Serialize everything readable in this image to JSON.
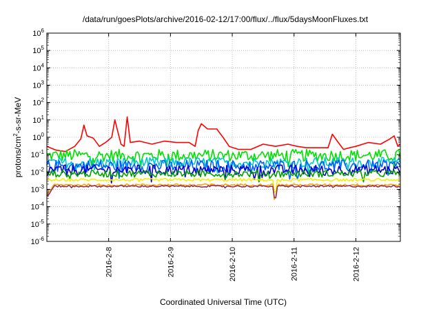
{
  "chart_data": {
    "type": "line",
    "title": "/data/run/goesPlots/archive/2016-02-12/17:00/flux/../flux/5daysMoonFluxes.txt",
    "xlabel": "Coordinated Universal Time (UTC)",
    "ylabel_parts": [
      "protons/cm",
      "2",
      "-s-sr-MeV"
    ],
    "y_scale": "log",
    "ylim_exp": [
      -6,
      6
    ],
    "y_tick_exponents": [
      -6,
      -5,
      -4,
      -3,
      -2,
      -1,
      0,
      1,
      2,
      3,
      4,
      5,
      6
    ],
    "x_tick_labels": [
      "2016-2-8",
      "2016-2-9",
      "2016-2-10",
      "2016-2-11",
      "2016-2-12"
    ],
    "xlim_days": [
      7.0,
      12.72
    ],
    "x_tick_days": [
      8,
      9,
      10,
      11,
      12
    ],
    "grid": true,
    "series": [
      {
        "color": "#ff0000",
        "points": [
          [
            7.0,
            0.3
          ],
          [
            7.15,
            0.18
          ],
          [
            7.3,
            0.15
          ],
          [
            7.45,
            0.3
          ],
          [
            7.55,
            0.8
          ],
          [
            7.6,
            5.0
          ],
          [
            7.65,
            1.2
          ],
          [
            7.75,
            0.9
          ],
          [
            7.85,
            0.3
          ],
          [
            7.95,
            0.5
          ],
          [
            8.05,
            1.0
          ],
          [
            8.1,
            10.0
          ],
          [
            8.15,
            2.0
          ],
          [
            8.2,
            0.4
          ],
          [
            8.25,
            0.3
          ],
          [
            8.3,
            15.0
          ],
          [
            8.35,
            0.5
          ],
          [
            8.5,
            0.6
          ],
          [
            8.7,
            0.4
          ],
          [
            8.9,
            0.6
          ],
          [
            9.1,
            0.5
          ],
          [
            9.3,
            0.5
          ],
          [
            9.4,
            0.3
          ],
          [
            9.45,
            2.5
          ],
          [
            9.5,
            6.0
          ],
          [
            9.6,
            3.0
          ],
          [
            9.75,
            3.0
          ],
          [
            9.85,
            1.0
          ],
          [
            9.95,
            0.3
          ],
          [
            10.1,
            0.2
          ],
          [
            10.3,
            0.2
          ],
          [
            10.5,
            0.4
          ],
          [
            10.7,
            0.3
          ],
          [
            10.9,
            0.4
          ],
          [
            11.05,
            0.3
          ],
          [
            11.2,
            0.25
          ],
          [
            11.4,
            0.25
          ],
          [
            11.55,
            0.25
          ],
          [
            11.62,
            1.5
          ],
          [
            11.7,
            0.6
          ],
          [
            11.8,
            0.2
          ],
          [
            11.9,
            0.25
          ],
          [
            12.0,
            0.3
          ],
          [
            12.2,
            0.5
          ],
          [
            12.4,
            0.4
          ],
          [
            12.55,
            0.8
          ],
          [
            12.62,
            1.2
          ],
          [
            12.68,
            0.3
          ],
          [
            12.72,
            0.4
          ]
        ]
      },
      {
        "color": "#00e000",
        "level": 0.09,
        "spread": 0.35
      },
      {
        "color": "#00c8c8",
        "level": 0.035,
        "spread": 0.3
      },
      {
        "color": "#0060ff",
        "level": 0.022,
        "spread": 0.35
      },
      {
        "color": "#0000c8",
        "level": 0.013,
        "spread": 0.3
      },
      {
        "color": "#00a000",
        "level": 0.008,
        "spread": 0.2
      },
      {
        "color": "#f0f000",
        "level": 0.0035,
        "spread": 0.08
      },
      {
        "color": "#ffa000",
        "level": 0.0018,
        "spread": 0.06
      },
      {
        "color": "#903060",
        "level": 0.0015,
        "spread": 0.05
      }
    ]
  }
}
